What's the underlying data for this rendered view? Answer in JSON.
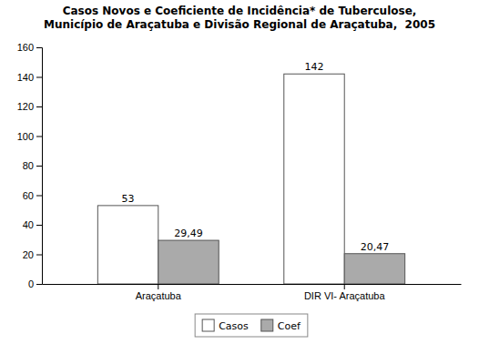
{
  "chart_data": {
    "type": "bar",
    "title": "Casos Novos e Coeficiente de Incidência* de Tuberculose,\nMunicípio de Araçatuba e Divisão Regional de Araçatuba,  2005",
    "categories": [
      "Araçatuba",
      "DIR VI- Araçatuba"
    ],
    "series": [
      {
        "name": "Casos",
        "color": "#FFFFFF",
        "values": [
          53,
          142
        ],
        "value_labels": [
          "53",
          "142"
        ]
      },
      {
        "name": "Coef",
        "color": "#AAAAAA",
        "values": [
          29.49,
          20.47
        ],
        "value_labels": [
          "29,49",
          "20,47"
        ]
      }
    ],
    "ylim": [
      0,
      160
    ],
    "yticks": [
      0,
      20,
      40,
      60,
      80,
      100,
      120,
      140,
      160
    ],
    "grid": false,
    "legend": "bottom",
    "data_labels": true
  }
}
